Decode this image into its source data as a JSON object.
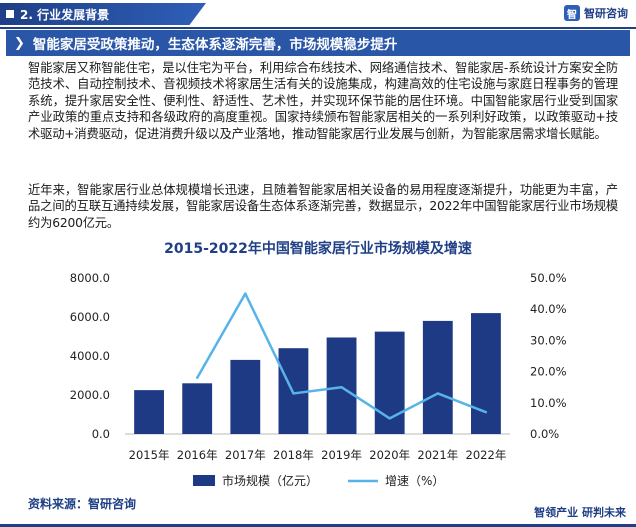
{
  "header": {
    "section_label": "2. 行业发展背景",
    "brand_name": "智研咨询",
    "logo_char": "智"
  },
  "headline": {
    "text": "智能家居受政策推动，生态体系逐渐完善，市场规模稳步提升"
  },
  "body": {
    "paragraph1": "智能家居又称智能住宅，是以住宅为平台，利用综合布线技术、网络通信技术、智能家居-系统设计方案安全防范技术、自动控制技术、音视频技术将家居生活有关的设施集成，构建高效的住宅设施与家庭日程事务的管理系统，提升家居安全性、便利性、舒适性、艺术性，并实现环保节能的居住环境。中国智能家居行业受到国家产业政策的重点支持和各级政府的高度重视。国家持续颁布智能家居相关的一系列利好政策，以政策驱动+技术驱动+消费驱动，促进消费升级以及产业落地，推动智能家居行业发展与创新，为智能家居需求增长赋能。",
    "paragraph2": "近年来，智能家居行业总体规模增长迅速，且随着智能家居相关设备的易用程度逐渐提升，功能更为丰富，产品之间的互联互通持续发展，智能家居设备生态体系逐渐完善，数据显示，2022年中国智能家居行业市场规模约为6200亿元。"
  },
  "footer": {
    "source": "资料来源：智研咨询",
    "brand_tagline": "智领产业  研判未来"
  },
  "colors": {
    "bar": "#1f3a84",
    "line": "#57b3ea",
    "title": "#1f3f86"
  },
  "chart_data": {
    "type": "bar",
    "title": "2015-2022年中国智能家居行业市场规模及增速",
    "categories": [
      "2015年",
      "2016年",
      "2017年",
      "2018年",
      "2019年",
      "2020年",
      "2021年",
      "2022年"
    ],
    "series": [
      {
        "name": "市场规模（亿元）",
        "type": "bar",
        "axis": "left",
        "values": [
          2250,
          2600,
          3800,
          4400,
          4950,
          5250,
          5800,
          6200
        ]
      },
      {
        "name": "增速（%）",
        "type": "line",
        "axis": "right",
        "values": [
          null,
          18.0,
          45.0,
          13.0,
          15.0,
          5.0,
          13.0,
          7.0
        ]
      }
    ],
    "y_left": {
      "ylim": [
        0,
        8000
      ],
      "ticks": [
        "0.0",
        "2000.0",
        "4000.0",
        "6000.0",
        "8000.0"
      ]
    },
    "y_right": {
      "ylim": [
        0,
        50
      ],
      "ticks": [
        "0.0%",
        "10.0%",
        "20.0%",
        "30.0%",
        "40.0%",
        "50.0%"
      ]
    },
    "legend": "bottom",
    "grid": false
  }
}
